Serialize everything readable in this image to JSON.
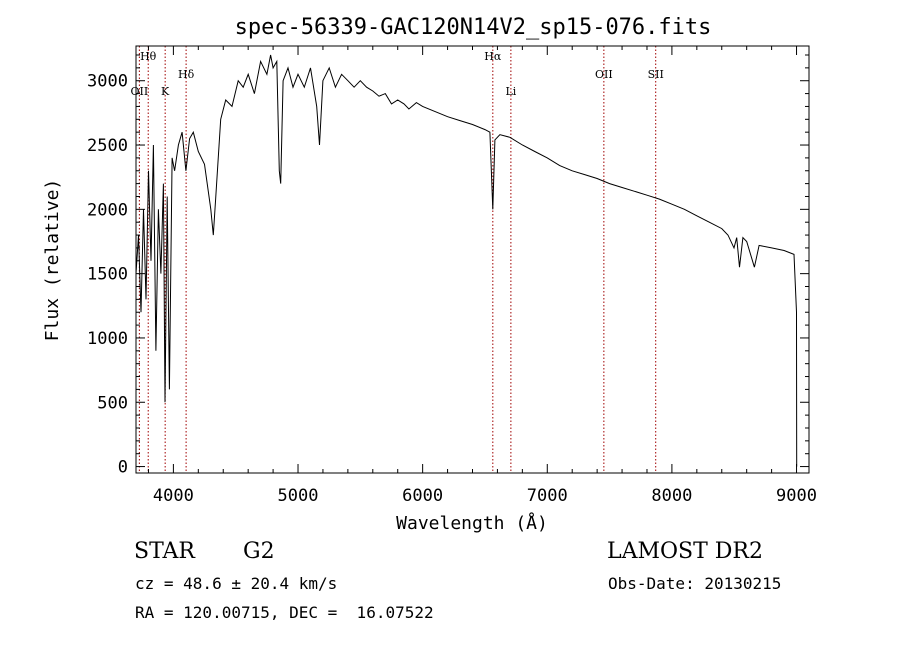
{
  "chart_data": {
    "type": "line",
    "title": "spec-56339-GAC120N14V2_sp15-076.fits",
    "xlabel": "Wavelength (Å)",
    "ylabel": "Flux (relative)",
    "xlim": [
      3700,
      9100
    ],
    "ylim": [
      -50,
      3270
    ],
    "xticks": [
      4000,
      5000,
      6000,
      7000,
      8000,
      9000
    ],
    "yticks": [
      0,
      500,
      1000,
      1500,
      2000,
      2500,
      3000
    ],
    "xtick_labels": [
      "4000",
      "5000",
      "6000",
      "7000",
      "8000",
      "9000"
    ],
    "ytick_labels": [
      "0",
      "500",
      "1000",
      "1500",
      "2000",
      "2500",
      "3000"
    ],
    "grid": false,
    "line_color": "#000000",
    "marker_color": "#a00000",
    "spectrum": {
      "x": [
        3700,
        3720,
        3740,
        3760,
        3780,
        3800,
        3820,
        3840,
        3860,
        3880,
        3900,
        3920,
        3933,
        3950,
        3968,
        3990,
        4010,
        4040,
        4070,
        4100,
        4130,
        4160,
        4200,
        4250,
        4300,
        4320,
        4340,
        4380,
        4420,
        4470,
        4520,
        4560,
        4600,
        4650,
        4700,
        4750,
        4780,
        4800,
        4830,
        4850,
        4861,
        4880,
        4920,
        4960,
        5000,
        5050,
        5100,
        5150,
        5172,
        5200,
        5250,
        5300,
        5350,
        5400,
        5450,
        5500,
        5550,
        5600,
        5650,
        5700,
        5750,
        5800,
        5850,
        5890,
        5950,
        6000,
        6100,
        6200,
        6300,
        6400,
        6500,
        6540,
        6563,
        6580,
        6620,
        6700,
        6800,
        6900,
        7000,
        7100,
        7200,
        7300,
        7400,
        7500,
        7600,
        7700,
        7800,
        7900,
        8000,
        8100,
        8200,
        8300,
        8400,
        8450,
        8498,
        8520,
        8542,
        8570,
        8600,
        8662,
        8700,
        8800,
        8900,
        8980,
        9000,
        9001
      ],
      "y": [
        1500,
        1800,
        1200,
        2000,
        1300,
        2300,
        1600,
        2500,
        900,
        2000,
        1500,
        2200,
        500,
        2100,
        600,
        2400,
        2300,
        2500,
        2600,
        2300,
        2550,
        2600,
        2450,
        2350,
        2000,
        1800,
        2100,
        2700,
        2850,
        2800,
        3000,
        2950,
        3050,
        2900,
        3150,
        3050,
        3200,
        3100,
        3150,
        2300,
        2200,
        3000,
        3100,
        2950,
        3050,
        2950,
        3100,
        2800,
        2500,
        3000,
        3100,
        2950,
        3050,
        3000,
        2950,
        3000,
        2950,
        2920,
        2880,
        2900,
        2820,
        2850,
        2820,
        2780,
        2830,
        2800,
        2760,
        2720,
        2690,
        2660,
        2620,
        2600,
        2000,
        2540,
        2580,
        2560,
        2500,
        2450,
        2400,
        2340,
        2300,
        2270,
        2240,
        2200,
        2170,
        2140,
        2110,
        2080,
        2040,
        2000,
        1950,
        1900,
        1850,
        1800,
        1700,
        1780,
        1550,
        1780,
        1750,
        1550,
        1720,
        1700,
        1680,
        1650,
        1200,
        0
      ]
    },
    "lines": [
      {
        "label": "Hθ",
        "x": 3798,
        "label_row": "upper"
      },
      {
        "label": "OII",
        "x": 3727,
        "label_row": "middle"
      },
      {
        "label": "K",
        "x": 3934,
        "label_row": "middle"
      },
      {
        "label": "Hδ",
        "x": 4102,
        "label_row": "lower"
      },
      {
        "label": "Hα",
        "x": 6563,
        "label_row": "upper"
      },
      {
        "label": "Li",
        "x": 6708,
        "label_row": "middle"
      },
      {
        "label": "OII",
        "x": 7454,
        "label_row": "lower"
      },
      {
        "label": "SII",
        "x": 7870,
        "label_row": "lower"
      }
    ]
  },
  "info": {
    "class": "STAR",
    "subclass": "G2",
    "survey": "LAMOST DR2",
    "cz": "cz = 48.6 ± 20.4 km/s",
    "obs_date": "Obs-Date: 20130215",
    "coords": "RA = 120.00715, DEC =  16.07522"
  }
}
